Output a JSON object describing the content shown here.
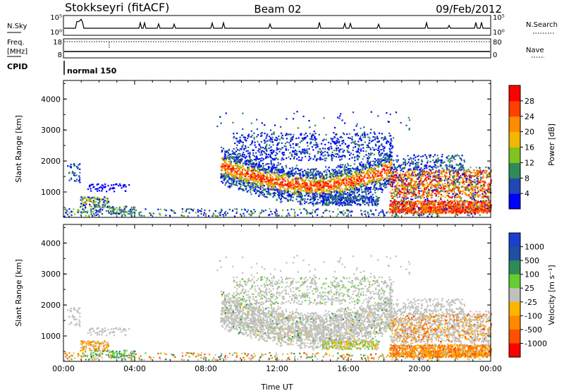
{
  "header": {
    "station": "Stokkseyri (fitACF)",
    "beam": "Beam 02",
    "date": "09/Feb/2012"
  },
  "noise_panel": {
    "left_label": "N.Sky",
    "right_label": "N.Search",
    "right_legend_style": "dotted",
    "ticks_left": [
      "10^5",
      "10^0"
    ],
    "ticks_right": [
      "10^5",
      "10^0"
    ]
  },
  "freq_panel": {
    "left_label_line1": "Freq.",
    "left_label_line2": "[MHz]",
    "right_label": "Nave",
    "right_legend_style": "dotted",
    "ticks_left": [
      "18",
      "8"
    ],
    "ticks_right": [
      "80",
      "0"
    ]
  },
  "cpid_panel": {
    "label": "CPID",
    "program": "normal 150"
  },
  "colors": {
    "power_scale": [
      "#0000ff",
      "#1f49b2",
      "#2e8b57",
      "#7fc31f",
      "#f0b800",
      "#ff8c00",
      "#ff4000",
      "#ff0000"
    ],
    "velocity_scale": [
      "#1a3fd0",
      "#1f4fa0",
      "#2e8b57",
      "#66cc33",
      "#c0c0bc",
      "#ffb400",
      "#ff8a00",
      "#ff5000",
      "#ff0000"
    ],
    "ground_scatter": "#c0c0bc"
  },
  "chart_data": [
    {
      "type": "heatmap",
      "name": "power",
      "ylabel": "Slant Range [km]",
      "ylim": [
        180,
        4600
      ],
      "yticks": [
        "1000",
        "2000",
        "3000",
        "4000"
      ],
      "xlim": [
        0,
        24
      ],
      "colorbar": {
        "label": "Power [dB]",
        "min": 0,
        "max": 32,
        "ticks": [
          "4",
          "8",
          "12",
          "16",
          "20",
          "24",
          "28"
        ]
      }
    },
    {
      "type": "heatmap",
      "name": "velocity",
      "ylabel": "Slant Range [km]",
      "xlabel": "Time UT",
      "ylim": [
        180,
        4600
      ],
      "yticks": [
        "1000",
        "2000",
        "3000",
        "4000"
      ],
      "xlim": [
        0,
        24
      ],
      "xticks": [
        "00:00",
        "04:00",
        "08:00",
        "12:00",
        "16:00",
        "20:00",
        "00:00"
      ],
      "colorbar": {
        "label": "Velocity [m s^-1]",
        "ticks": [
          "1000",
          "500",
          "100",
          "25",
          "-25",
          "-100",
          "-500",
          "-1000"
        ]
      }
    }
  ]
}
